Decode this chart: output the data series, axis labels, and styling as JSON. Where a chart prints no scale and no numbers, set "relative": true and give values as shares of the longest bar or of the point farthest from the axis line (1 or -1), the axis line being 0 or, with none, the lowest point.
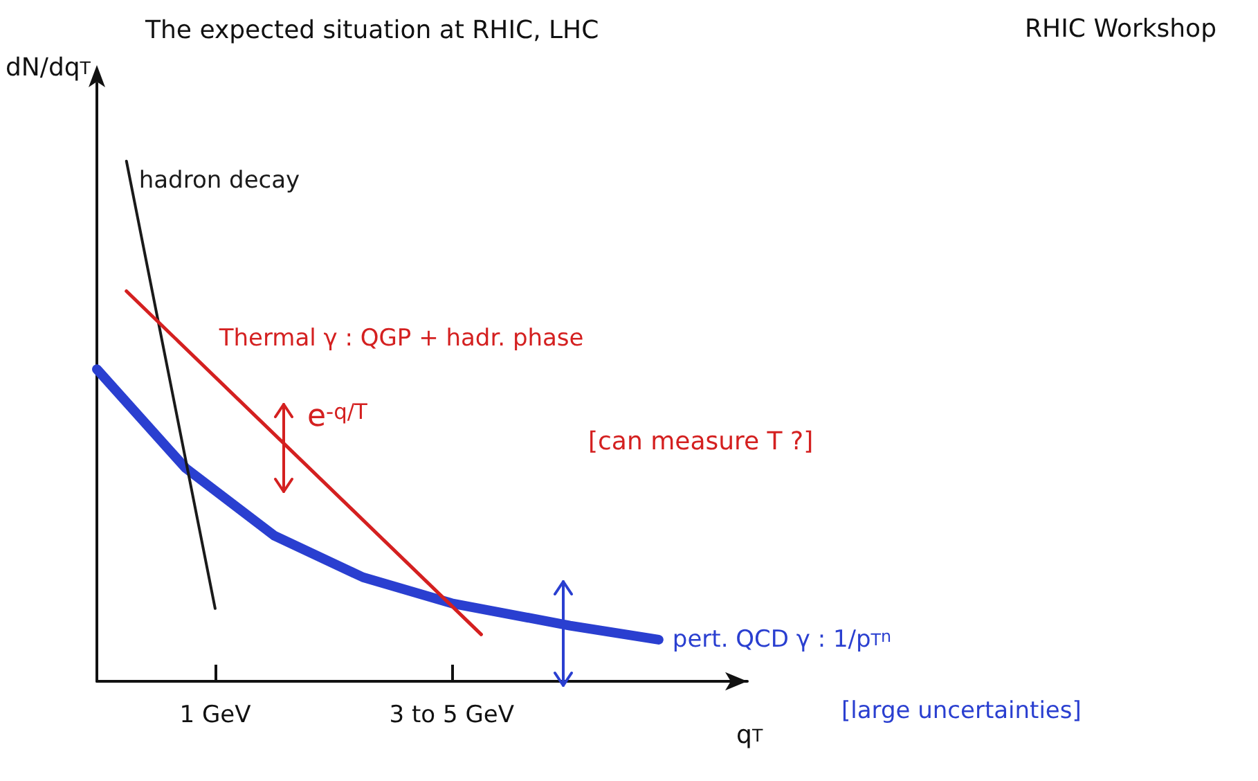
{
  "chart_data": {
    "type": "line",
    "title": "The expected situation at RHIC, LHC",
    "xlabel": "q$_{T}$",
    "ylabel": "dN/dq$_{T}$",
    "relative": true,
    "categories": [
      null,
      null,
      null,
      null,
      "1 GeV",
      null,
      null,
      null,
      null,
      null,
      null,
      null,
      "3 to 5 GeV",
      null,
      null,
      null,
      null,
      null,
      null,
      null,
      null,
      null,
      null
    ],
    "series": [
      {
        "name": "hadron decay",
        "color": "#1a1a1a",
        "values": [
          null,
          1,
          null,
          null,
          0.14,
          null,
          null,
          null,
          null,
          null,
          null,
          null,
          null,
          null,
          null,
          null,
          null,
          null,
          null,
          null,
          null,
          null,
          null
        ]
      },
      {
        "name": "Thermal γ : QGP + hadr. phase",
        "color": "#d42020",
        "values": [
          null,
          0.75,
          null,
          null,
          null,
          null,
          null,
          null,
          null,
          null,
          null,
          null,
          null,
          0.09,
          null,
          null,
          null,
          null,
          null,
          null,
          null,
          null,
          null
        ]
      },
      {
        "name": "pert. QCD γ : 1/p$_{T}$$^{n}$",
        "color": "#2a3fd0",
        "values": [
          0.6,
          null,
          null,
          0.41,
          null,
          null,
          0.28,
          null,
          null,
          0.2,
          null,
          null,
          0.15,
          null,
          null,
          null,
          0.107,
          null,
          null,
          0.08,
          null,
          null,
          null
        ]
      }
    ],
    "annotations": [
      "RHIC Workshop",
      "e$^{-q/T}$",
      "[can measure T ?]",
      "[large uncertainties]"
    ],
    "grid": false,
    "marker": "none",
    "line_style": "solid"
  }
}
